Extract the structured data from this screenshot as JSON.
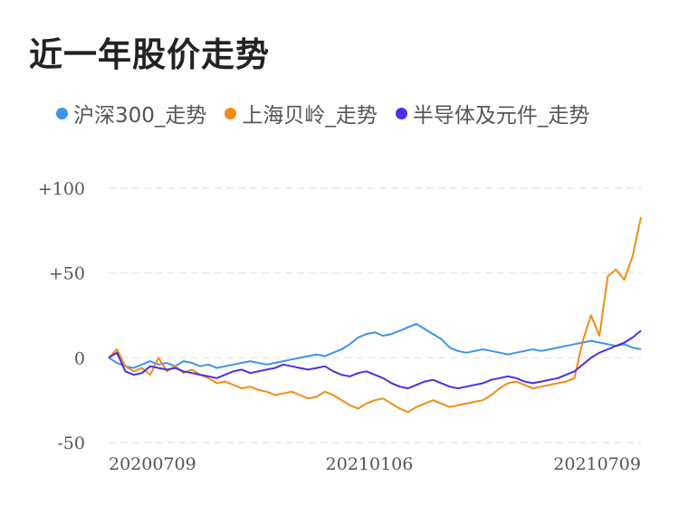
{
  "title": "近一年股价走势",
  "chart_data": {
    "type": "line",
    "title": "近一年股价走势",
    "xlabel": "",
    "ylabel": "",
    "x_ticks": [
      "20200709",
      "20210106",
      "20210709"
    ],
    "y_ticks": [
      "+100",
      "+50",
      "0",
      "-50"
    ],
    "ylim": [
      -50,
      100
    ],
    "grid": true,
    "legend_position": "top",
    "series": [
      {
        "name": "沪深300_走势",
        "color": "#3d94ea",
        "values": [
          0,
          -3,
          -5,
          -6,
          -4,
          -2,
          -4,
          -3,
          -5,
          -2,
          -3,
          -5,
          -4,
          -6,
          -5,
          -4,
          -3,
          -2,
          -3,
          -4,
          -3,
          -2,
          -1,
          0,
          1,
          2,
          1,
          3,
          5,
          8,
          12,
          14,
          15,
          13,
          14,
          16,
          18,
          20,
          17,
          14,
          11,
          6,
          4,
          3,
          4,
          5,
          4,
          3,
          2,
          3,
          4,
          5,
          4,
          5,
          6,
          7,
          8,
          9,
          10,
          9,
          8,
          7,
          8,
          6,
          5
        ]
      },
      {
        "name": "上海贝岭_走势",
        "color": "#f08c17",
        "values": [
          0,
          5,
          -5,
          -8,
          -6,
          -10,
          0,
          -8,
          -5,
          -9,
          -7,
          -10,
          -12,
          -15,
          -14,
          -16,
          -18,
          -17,
          -19,
          -20,
          -22,
          -21,
          -20,
          -22,
          -24,
          -23,
          -20,
          -22,
          -25,
          -28,
          -30,
          -27,
          -25,
          -24,
          -27,
          -30,
          -32,
          -29,
          -27,
          -25,
          -27,
          -29,
          -28,
          -27,
          -26,
          -25,
          -22,
          -18,
          -15,
          -14,
          -16,
          -18,
          -17,
          -16,
          -15,
          -14,
          -12,
          10,
          25,
          13,
          48,
          52,
          46,
          60,
          83
        ]
      },
      {
        "name": "半导体及元件_走势",
        "color": "#4e2ee3",
        "values": [
          0,
          3,
          -8,
          -10,
          -9,
          -5,
          -6,
          -7,
          -6,
          -8,
          -9,
          -10,
          -11,
          -12,
          -10,
          -8,
          -7,
          -9,
          -8,
          -7,
          -6,
          -4,
          -5,
          -6,
          -7,
          -6,
          -5,
          -8,
          -10,
          -11,
          -9,
          -8,
          -10,
          -12,
          -15,
          -17,
          -18,
          -16,
          -14,
          -13,
          -15,
          -17,
          -18,
          -17,
          -16,
          -15,
          -13,
          -12,
          -11,
          -12,
          -14,
          -15,
          -14,
          -13,
          -12,
          -10,
          -8,
          -4,
          0,
          3,
          5,
          7,
          9,
          12,
          16
        ]
      }
    ]
  }
}
